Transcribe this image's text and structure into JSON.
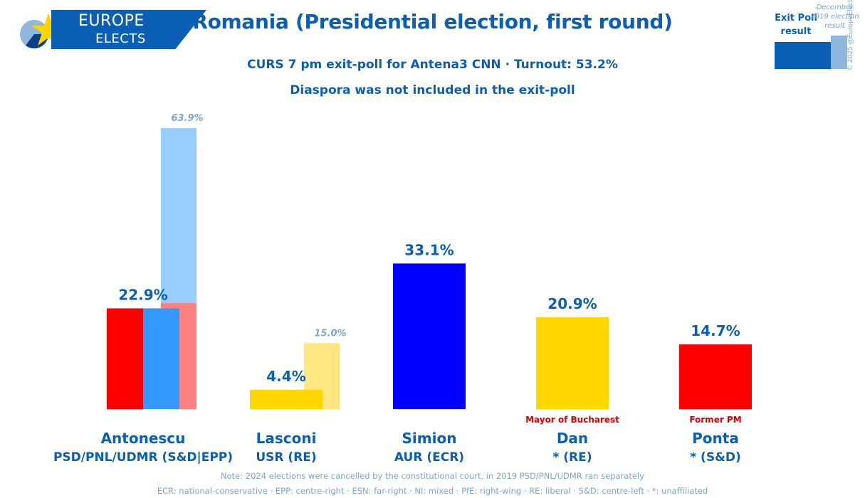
{
  "brand": {
    "line1": "EUROPE",
    "line2": "ELECTS"
  },
  "header": {
    "title": "Romania (Presidential election, first round)",
    "subtitle1": "CURS 7 pm exit-poll for Antena3 CNN · Turnout: 53.2%",
    "subtitle2": "Diaspora was not included in the exit-poll"
  },
  "legend": {
    "exit_poll": "Exit Poll result",
    "previous": "December 2019 election result"
  },
  "copyright": "© 2025 @EuropeElects",
  "footer": {
    "note1": "Note: 2024 elections were cancelled by the constitutional court, in 2019 PSD/PNL/UDMR ran separately",
    "note2": "ECR: national-conservative · EPP: centre-right · ESN: far-right · NI: mixed · PfE: right-wing · RE: liberal · S&D: centre-left · *: unaffiliated"
  },
  "chart_data": {
    "type": "bar",
    "ylim": [
      0,
      63.9
    ],
    "categories": [
      {
        "name": "Antonescu",
        "party": "PSD/PNL/UDMR (S&D|EPP)",
        "value": 22.9,
        "label": "22.9%",
        "colors": [
          "#ff0000",
          "#3399ff"
        ],
        "previous": {
          "stack": [
            24.1,
            39.8
          ],
          "colors": [
            "#ff8080",
            "#99ccff"
          ],
          "label": "63.9%"
        }
      },
      {
        "name": "Lasconi",
        "party": "USR (RE)",
        "value": 4.4,
        "label": "4.4%",
        "colors": [
          "#ffd700"
        ],
        "previous": {
          "stack": [
            15.0
          ],
          "colors": [
            "#ffe680"
          ],
          "label": "15.0%"
        }
      },
      {
        "name": "Simion",
        "party": "AUR (ECR)",
        "value": 33.1,
        "label": "33.1%",
        "colors": [
          "#0000ff"
        ]
      },
      {
        "name": "Dan",
        "party": "* (RE)",
        "value": 20.9,
        "label": "20.9%",
        "colors": [
          "#ffd700"
        ],
        "note": "Mayor of Bucharest"
      },
      {
        "name": "Ponta",
        "party": "* (S&D)",
        "value": 14.7,
        "label": "14.7%",
        "colors": [
          "#ff0000"
        ],
        "note": "Former PM"
      }
    ]
  }
}
